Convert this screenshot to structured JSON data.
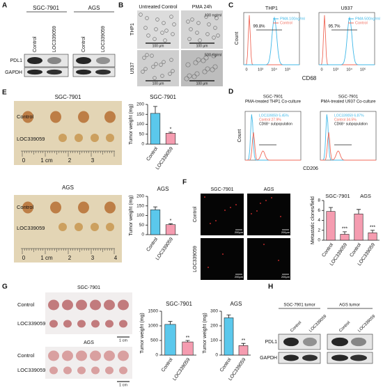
{
  "panels": {
    "letters": [
      "A",
      "B",
      "C",
      "D",
      "E",
      "F",
      "G",
      "H"
    ],
    "a": {
      "cell_lines": [
        "SGC-7901",
        "AGS"
      ],
      "lanes": [
        "Control",
        "LOC339059",
        "Control",
        "LOC339059"
      ],
      "rows": [
        "PDL1",
        "GAPDH"
      ]
    },
    "b": {
      "columns": [
        "Untreated Control",
        "PMA 24h"
      ],
      "rows": [
        "THP1",
        "U937"
      ],
      "doses": [
        "100 ng/ml",
        "500 ng/ml"
      ],
      "scale": [
        "100 μm",
        "100 μm",
        "100 μm",
        "100 μm"
      ]
    },
    "c": {
      "titles": [
        "THP1",
        "U937"
      ],
      "percents": [
        "99.8%",
        "95.7%"
      ],
      "legends": [
        [
          "PMA 100ng/ml",
          "Control"
        ],
        [
          "PMA 500ng/ml",
          "Control"
        ]
      ],
      "y_label": "Count",
      "x_label": "CD68",
      "ticks": [
        "0",
        "10³",
        "10⁴",
        "10⁵"
      ]
    },
    "d": {
      "titles": [
        [
          "SGC-7901",
          "PMA-treated THP1 Co-culture"
        ],
        [
          "SGC-7901",
          "PMA-treated U937 Co-culture"
        ]
      ],
      "legends": [
        [
          "LOC339059 5.45%",
          "Control 27.9%",
          "CD68⁺ subpopulation"
        ],
        [
          "LOC339059 6.87%",
          "Control 34.5%",
          "CD68⁺ subpopulation"
        ]
      ],
      "y_label": "Count",
      "x_label": "CD206"
    },
    "e": {
      "photos": [
        {
          "title": "SGC-7901",
          "rows": [
            "Control",
            "LOC339059"
          ],
          "ruler": [
            "0",
            "1 cm",
            "2",
            "3"
          ]
        },
        {
          "title": "AGS",
          "rows": [
            "Control",
            "LOC339059"
          ],
          "ruler": [
            "0",
            "1 cm",
            "2",
            "3",
            "4"
          ]
        }
      ]
    },
    "f": {
      "columns": [
        "SGC-7901",
        "AGS"
      ],
      "rows": [
        "Control",
        "LOC339059"
      ],
      "scale": "200μm"
    },
    "g": {
      "photos": [
        {
          "title": "SGC-7901",
          "rows": [
            "Control",
            "LOC339059"
          ],
          "scale": "1 cm"
        },
        {
          "title": "AGS",
          "rows": [
            "Control",
            "LOC339059"
          ],
          "scale": "1 cm"
        }
      ]
    },
    "h": {
      "groups": [
        "SGC-7901 tumor",
        "AGS tumor"
      ],
      "lanes": [
        "Control",
        "LOC339059",
        "Control",
        "LOC339059"
      ],
      "rows": [
        "PDL1",
        "GAPDH"
      ]
    }
  },
  "chart_data": [
    {
      "type": "bar",
      "title": "SGC-7901",
      "y_label": "Tumor weight (mg)",
      "categories": [
        "Control",
        "LOC339059"
      ],
      "values": [
        155,
        55
      ],
      "errors": [
        35,
        5
      ],
      "annotations": [
        null,
        "*"
      ],
      "colors": [
        "#5bc8ec",
        "#f59cb0"
      ],
      "ylim": [
        0,
        200
      ],
      "yticks": [
        0,
        50,
        100,
        150,
        200
      ]
    },
    {
      "type": "bar",
      "title": "AGS",
      "y_label": "Tumor weight (mg)",
      "categories": [
        "Control",
        "LOC339059"
      ],
      "values": [
        130,
        52
      ],
      "errors": [
        15,
        5
      ],
      "annotations": [
        null,
        "*"
      ],
      "colors": [
        "#5bc8ec",
        "#f59cb0"
      ],
      "ylim": [
        0,
        200
      ],
      "yticks": [
        0,
        50,
        100,
        150,
        200
      ]
    },
    {
      "type": "bar",
      "group_labels": [
        "SGC-7901",
        "AGS"
      ],
      "y_label": "Metastatic clones/field",
      "categories": [
        "Control",
        "LOC339059",
        "Control",
        "LOC339059"
      ],
      "values": [
        5.8,
        1.2,
        5.3,
        1.5
      ],
      "errors": [
        0.8,
        0.5,
        0.9,
        0.5
      ],
      "annotations": [
        null,
        "***",
        null,
        "***"
      ],
      "colors": [
        "#f59cb0",
        "#f59cb0",
        "#f59cb0",
        "#f59cb0"
      ],
      "ylim": [
        0,
        8
      ],
      "yticks": [
        0,
        2,
        4,
        6,
        8
      ]
    },
    {
      "type": "bar",
      "title": "SGC-7901",
      "y_label": "Tumor weight (mg)",
      "categories": [
        "Control",
        "LOC339059"
      ],
      "values": [
        1050,
        450
      ],
      "errors": [
        100,
        50
      ],
      "annotations": [
        null,
        "**"
      ],
      "colors": [
        "#5bc8ec",
        "#f59cb0"
      ],
      "ylim": [
        0,
        1500
      ],
      "yticks": [
        0,
        500,
        1000,
        1500
      ]
    },
    {
      "type": "bar",
      "title": "AGS",
      "y_label": "Tumor weight (mg)",
      "categories": [
        "Control",
        "LOC339059"
      ],
      "values": [
        255,
        65
      ],
      "errors": [
        20,
        15
      ],
      "annotations": [
        null,
        "**"
      ],
      "colors": [
        "#5bc8ec",
        "#f59cb0"
      ],
      "ylim": [
        0,
        300
      ],
      "yticks": [
        0,
        100,
        200,
        300
      ]
    }
  ]
}
